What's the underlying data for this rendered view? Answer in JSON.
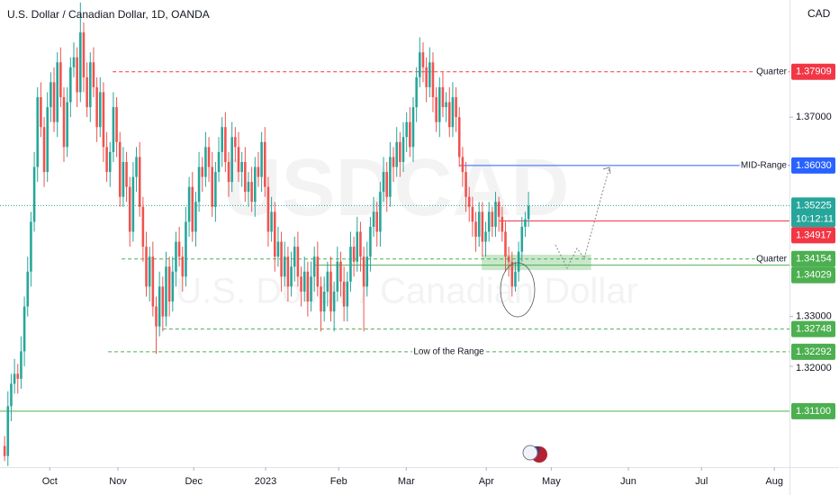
{
  "chart_data": {
    "type": "candlestick",
    "title": "U.S. Dollar / Canadian Dollar, 1D, OANDA",
    "currency": "CAD",
    "watermark": {
      "symbol": "USDCAD",
      "description": "U.S. Dollar / Canadian Dollar"
    },
    "up_color": "#26a69a",
    "down_color": "#ef5350",
    "xlim": [
      -1.4,
      238.2
    ],
    "xticks": [
      {
        "value": 13.7,
        "label": "Oct"
      },
      {
        "value": 34.4,
        "label": "Nov"
      },
      {
        "value": 57.4,
        "label": "Dec"
      },
      {
        "value": 79.2,
        "label": "2023"
      },
      {
        "value": 101.4,
        "label": "Feb"
      },
      {
        "value": 121.9,
        "label": "Mar"
      },
      {
        "value": 146.2,
        "label": "Apr"
      },
      {
        "value": 165.9,
        "label": "May"
      },
      {
        "value": 189.3,
        "label": "Jun"
      },
      {
        "value": 211.5,
        "label": "Jul"
      },
      {
        "value": 233.6,
        "label": "Aug"
      }
    ],
    "ylim": [
      1.3005,
      1.3935
    ],
    "yticks": [
      {
        "value": 1.37,
        "label": "1.37000"
      },
      {
        "value": 1.33,
        "label": "1.33000"
      },
      {
        "value": 1.32,
        "label": "1.32000"
      }
    ],
    "last_price": {
      "value": 1.35225,
      "countdown": "10:12:11",
      "color": "#26a69a"
    },
    "levels": [
      {
        "value": 1.37909,
        "color": "#f23645",
        "style": "dashed",
        "from": 32.8,
        "label": "Quarter",
        "label_align": "right"
      },
      {
        "value": 1.3603,
        "value_label": "1.36030",
        "color": "#2962ff",
        "style": "solid",
        "from": 138,
        "label": "MID-Range",
        "label_align": "right"
      },
      {
        "value": 1.34917,
        "color": "#f23645",
        "style": "solid",
        "from": 150
      },
      {
        "value": 1.34154,
        "color": "#4caf50",
        "style": "dashed",
        "from": 35.5,
        "label": "Quarter",
        "label_align": "right"
      },
      {
        "value": 1.34029,
        "color": "#4caf50",
        "style": "solid",
        "from": 94
      },
      {
        "value": 1.32748,
        "color": "#4caf50",
        "style": "dashed",
        "from": 48
      },
      {
        "value": 1.32292,
        "color": "#4caf50",
        "style": "dashed",
        "from": 31.4,
        "label": "Low of the Range",
        "label_align": "center"
      },
      {
        "value": 1.311,
        "value_label": "1.31100",
        "color": "#4caf50",
        "style": "solid",
        "from": -1.4
      }
    ],
    "zone": {
      "from_x": 144.8,
      "to_x": 178,
      "low": 1.3393,
      "high": 1.3424,
      "color": "#4caf50"
    },
    "ohlc": [
      [
        1.304,
        1.306,
        1.301,
        1.302
      ],
      [
        1.302,
        1.315,
        1.3,
        1.312
      ],
      [
        1.312,
        1.3185,
        1.309,
        1.3165
      ],
      [
        1.3165,
        1.3215,
        1.3145,
        1.3185
      ],
      [
        1.3185,
        1.3205,
        1.3145,
        1.3175
      ],
      [
        1.3175,
        1.326,
        1.3155,
        1.323
      ],
      [
        1.323,
        1.334,
        1.32,
        1.332
      ],
      [
        1.332,
        1.342,
        1.33,
        1.339
      ],
      [
        1.339,
        1.351,
        1.336,
        1.349
      ],
      [
        1.349,
        1.363,
        1.347,
        1.36
      ],
      [
        1.36,
        1.376,
        1.357,
        1.374
      ],
      [
        1.374,
        1.377,
        1.366,
        1.368
      ],
      [
        1.368,
        1.37,
        1.356,
        1.359
      ],
      [
        1.359,
        1.375,
        1.357,
        1.372
      ],
      [
        1.372,
        1.379,
        1.369,
        1.377
      ],
      [
        1.377,
        1.38,
        1.367,
        1.369
      ],
      [
        1.369,
        1.383,
        1.366,
        1.381
      ],
      [
        1.381,
        1.384,
        1.372,
        1.374
      ],
      [
        1.374,
        1.376,
        1.361,
        1.364
      ],
      [
        1.364,
        1.376,
        1.362,
        1.373
      ],
      [
        1.373,
        1.382,
        1.37,
        1.38
      ],
      [
        1.38,
        1.385,
        1.378,
        1.382
      ],
      [
        1.382,
        1.384,
        1.372,
        1.375
      ],
      [
        1.375,
        1.393,
        1.373,
        1.387
      ],
      [
        1.387,
        1.389,
        1.375,
        1.378
      ],
      [
        1.378,
        1.381,
        1.37,
        1.372
      ],
      [
        1.372,
        1.383,
        1.369,
        1.381
      ],
      [
        1.381,
        1.384,
        1.374,
        1.376
      ],
      [
        1.376,
        1.378,
        1.365,
        1.368
      ],
      [
        1.368,
        1.378,
        1.366,
        1.375
      ],
      [
        1.375,
        1.377,
        1.361,
        1.364
      ],
      [
        1.364,
        1.367,
        1.357,
        1.359
      ],
      [
        1.359,
        1.365,
        1.356,
        1.363
      ],
      [
        1.363,
        1.375,
        1.361,
        1.372
      ],
      [
        1.372,
        1.374,
        1.362,
        1.365
      ],
      [
        1.365,
        1.367,
        1.352,
        1.354
      ],
      [
        1.354,
        1.364,
        1.352,
        1.361
      ],
      [
        1.361,
        1.363,
        1.353,
        1.356
      ],
      [
        1.356,
        1.358,
        1.344,
        1.347
      ],
      [
        1.347,
        1.361,
        1.345,
        1.358
      ],
      [
        1.358,
        1.364,
        1.355,
        1.362
      ],
      [
        1.362,
        1.365,
        1.35,
        1.352
      ],
      [
        1.352,
        1.354,
        1.341,
        1.344
      ],
      [
        1.344,
        1.347,
        1.334,
        1.336
      ],
      [
        1.336,
        1.344,
        1.333,
        1.342
      ],
      [
        1.342,
        1.345,
        1.33,
        1.332
      ],
      [
        1.332,
        1.334,
        1.3225,
        1.328
      ],
      [
        1.328,
        1.339,
        1.326,
        1.336
      ],
      [
        1.336,
        1.338,
        1.327,
        1.33
      ],
      [
        1.33,
        1.343,
        1.328,
        1.34
      ],
      [
        1.34,
        1.342,
        1.33,
        1.333
      ],
      [
        1.333,
        1.342,
        1.331,
        1.339
      ],
      [
        1.339,
        1.347,
        1.336,
        1.345
      ],
      [
        1.345,
        1.348,
        1.34,
        1.342
      ],
      [
        1.342,
        1.344,
        1.335,
        1.338
      ],
      [
        1.338,
        1.352,
        1.336,
        1.349
      ],
      [
        1.349,
        1.358,
        1.346,
        1.356
      ],
      [
        1.356,
        1.359,
        1.345,
        1.347
      ],
      [
        1.347,
        1.355,
        1.344,
        1.353
      ],
      [
        1.353,
        1.363,
        1.351,
        1.36
      ],
      [
        1.36,
        1.362,
        1.355,
        1.358
      ],
      [
        1.358,
        1.367,
        1.356,
        1.364
      ],
      [
        1.364,
        1.366,
        1.357,
        1.36
      ],
      [
        1.36,
        1.363,
        1.35,
        1.352
      ],
      [
        1.352,
        1.361,
        1.349,
        1.359
      ],
      [
        1.359,
        1.366,
        1.357,
        1.363
      ],
      [
        1.363,
        1.37,
        1.36,
        1.368
      ],
      [
        1.368,
        1.371,
        1.359,
        1.361
      ],
      [
        1.361,
        1.363,
        1.354,
        1.357
      ],
      [
        1.357,
        1.369,
        1.355,
        1.366
      ],
      [
        1.366,
        1.368,
        1.361,
        1.364
      ],
      [
        1.364,
        1.367,
        1.357,
        1.359
      ],
      [
        1.359,
        1.363,
        1.356,
        1.361
      ],
      [
        1.361,
        1.364,
        1.353,
        1.355
      ],
      [
        1.355,
        1.359,
        1.352,
        1.357
      ],
      [
        1.357,
        1.36,
        1.351,
        1.353
      ],
      [
        1.353,
        1.362,
        1.35,
        1.36
      ],
      [
        1.36,
        1.363,
        1.356,
        1.358
      ],
      [
        1.358,
        1.367,
        1.355,
        1.365
      ],
      [
        1.365,
        1.368,
        1.354,
        1.356
      ],
      [
        1.356,
        1.358,
        1.344,
        1.347
      ],
      [
        1.347,
        1.354,
        1.345,
        1.351
      ],
      [
        1.351,
        1.353,
        1.339,
        1.342
      ],
      [
        1.342,
        1.348,
        1.34,
        1.345
      ],
      [
        1.345,
        1.347,
        1.335,
        1.338
      ],
      [
        1.338,
        1.345,
        1.336,
        1.342
      ],
      [
        1.342,
        1.344,
        1.333,
        1.336
      ],
      [
        1.336,
        1.343,
        1.334,
        1.34
      ],
      [
        1.34,
        1.346,
        1.337,
        1.344
      ],
      [
        1.344,
        1.347,
        1.336,
        1.338
      ],
      [
        1.338,
        1.34,
        1.332,
        1.335
      ],
      [
        1.335,
        1.342,
        1.333,
        1.339
      ],
      [
        1.339,
        1.341,
        1.33,
        1.333
      ],
      [
        1.333,
        1.341,
        1.331,
        1.338
      ],
      [
        1.338,
        1.344,
        1.335,
        1.342
      ],
      [
        1.342,
        1.345,
        1.334,
        1.336
      ],
      [
        1.336,
        1.338,
        1.327,
        1.331
      ],
      [
        1.331,
        1.338,
        1.329,
        1.335
      ],
      [
        1.335,
        1.341,
        1.332,
        1.339
      ],
      [
        1.339,
        1.342,
        1.329,
        1.331
      ],
      [
        1.331,
        1.337,
        1.327,
        1.335
      ],
      [
        1.335,
        1.344,
        1.333,
        1.341
      ],
      [
        1.341,
        1.343,
        1.334,
        1.337
      ],
      [
        1.337,
        1.34,
        1.329,
        1.332
      ],
      [
        1.332,
        1.339,
        1.329,
        1.337
      ],
      [
        1.337,
        1.347,
        1.335,
        1.344
      ],
      [
        1.344,
        1.346,
        1.338,
        1.341
      ],
      [
        1.341,
        1.35,
        1.339,
        1.347
      ],
      [
        1.347,
        1.349,
        1.339,
        1.342
      ],
      [
        1.342,
        1.344,
        1.327,
        1.336
      ],
      [
        1.336,
        1.345,
        1.334,
        1.342
      ],
      [
        1.342,
        1.35,
        1.339,
        1.348
      ],
      [
        1.348,
        1.354,
        1.346,
        1.351
      ],
      [
        1.351,
        1.353,
        1.344,
        1.347
      ],
      [
        1.347,
        1.357,
        1.344,
        1.355
      ],
      [
        1.355,
        1.362,
        1.353,
        1.359
      ],
      [
        1.359,
        1.361,
        1.351,
        1.354
      ],
      [
        1.354,
        1.365,
        1.352,
        1.362
      ],
      [
        1.362,
        1.364,
        1.357,
        1.36
      ],
      [
        1.36,
        1.368,
        1.358,
        1.365
      ],
      [
        1.365,
        1.367,
        1.358,
        1.361
      ],
      [
        1.361,
        1.369,
        1.359,
        1.366
      ],
      [
        1.366,
        1.371,
        1.363,
        1.369
      ],
      [
        1.369,
        1.372,
        1.362,
        1.364
      ],
      [
        1.364,
        1.374,
        1.361,
        1.372
      ],
      [
        1.372,
        1.38,
        1.369,
        1.378
      ],
      [
        1.378,
        1.386,
        1.376,
        1.383
      ],
      [
        1.383,
        1.385,
        1.377,
        1.38
      ],
      [
        1.38,
        1.382,
        1.373,
        1.376
      ],
      [
        1.376,
        1.384,
        1.374,
        1.381
      ],
      [
        1.381,
        1.383,
        1.371,
        1.374
      ],
      [
        1.374,
        1.376,
        1.367,
        1.369
      ],
      [
        1.369,
        1.378,
        1.366,
        1.376
      ],
      [
        1.376,
        1.379,
        1.37,
        1.372
      ],
      [
        1.372,
        1.375,
        1.369,
        1.373
      ],
      [
        1.373,
        1.376,
        1.366,
        1.368
      ],
      [
        1.368,
        1.377,
        1.366,
        1.374
      ],
      [
        1.374,
        1.376,
        1.367,
        1.37
      ],
      [
        1.37,
        1.372,
        1.36,
        1.362
      ],
      [
        1.362,
        1.364,
        1.356,
        1.359
      ],
      [
        1.359,
        1.361,
        1.351,
        1.354
      ],
      [
        1.354,
        1.356,
        1.349,
        1.352
      ],
      [
        1.352,
        1.354,
        1.346,
        1.349
      ],
      [
        1.349,
        1.351,
        1.343,
        1.346
      ],
      [
        1.346,
        1.353,
        1.344,
        1.351
      ],
      [
        1.351,
        1.353,
        1.342,
        1.345
      ],
      [
        1.345,
        1.349,
        1.342,
        1.347
      ],
      [
        1.347,
        1.353,
        1.345,
        1.351
      ],
      [
        1.351,
        1.352,
        1.346,
        1.348
      ],
      [
        1.348,
        1.355,
        1.346,
        1.353
      ],
      [
        1.353,
        1.354,
        1.347,
        1.35
      ],
      [
        1.35,
        1.352,
        1.345,
        1.347
      ],
      [
        1.347,
        1.349,
        1.339,
        1.342
      ],
      [
        1.342,
        1.344,
        1.338,
        1.341
      ],
      [
        1.341,
        1.343,
        1.334,
        1.336
      ],
      [
        1.336,
        1.341,
        1.335,
        1.339
      ],
      [
        1.339,
        1.345,
        1.337,
        1.343
      ],
      [
        1.343,
        1.35,
        1.341,
        1.348
      ],
      [
        1.348,
        1.351,
        1.346,
        1.3495
      ],
      [
        1.3495,
        1.355,
        1.348,
        1.3522
      ]
    ]
  }
}
